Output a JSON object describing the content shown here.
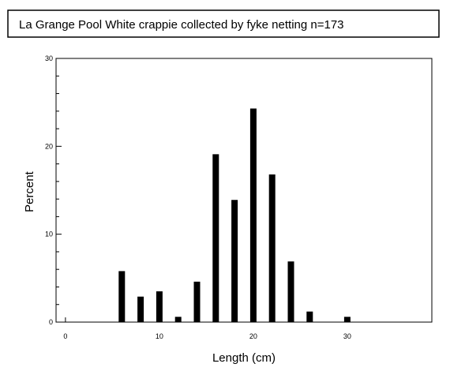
{
  "chart_data": {
    "type": "bar",
    "title": "La Grange Pool White crappie collected by fyke netting   n=173",
    "xlabel": "Length (cm)",
    "ylabel": "Percent",
    "xlim": [
      -1,
      39
    ],
    "ylim": [
      0,
      30
    ],
    "x_ticks": [
      0,
      10,
      20,
      30
    ],
    "x_tick_labels": [
      "0",
      "10",
      "20",
      "30"
    ],
    "y_ticks": [
      0,
      10,
      20,
      30
    ],
    "y_tick_labels": [
      "0",
      "10",
      "20",
      "30"
    ],
    "grid": false,
    "legend": "none",
    "bar_color": "#000000",
    "points": [
      {
        "x": 6,
        "y": 5.8
      },
      {
        "x": 8,
        "y": 2.9
      },
      {
        "x": 10,
        "y": 3.5
      },
      {
        "x": 12,
        "y": 0.6
      },
      {
        "x": 14,
        "y": 4.6
      },
      {
        "x": 16,
        "y": 19.1
      },
      {
        "x": 18,
        "y": 13.9
      },
      {
        "x": 20,
        "y": 24.3
      },
      {
        "x": 22,
        "y": 16.8
      },
      {
        "x": 24,
        "y": 6.9
      },
      {
        "x": 26,
        "y": 1.2
      },
      {
        "x": 30,
        "y": 0.6
      }
    ]
  }
}
